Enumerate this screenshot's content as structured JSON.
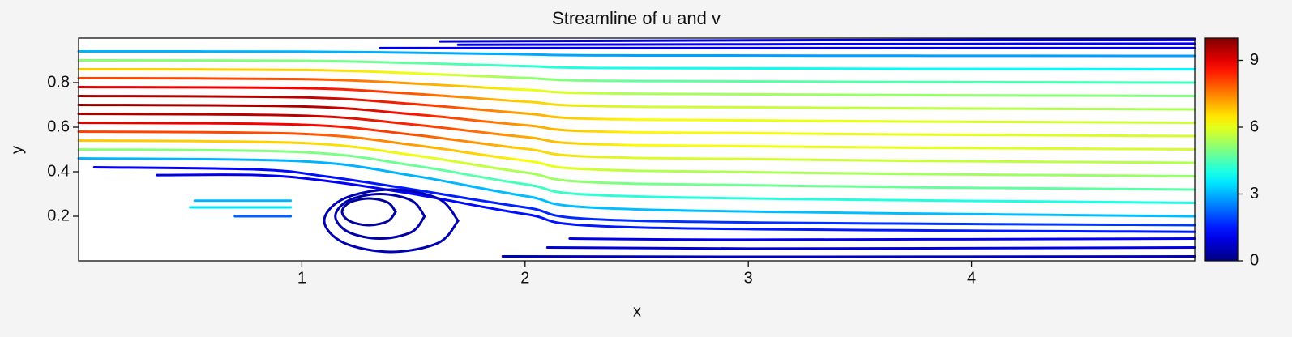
{
  "chart_data": {
    "type": "streamline",
    "title": "Streamline of u and v",
    "x_label": "x",
    "y_label": "y",
    "xlim": [
      0,
      5
    ],
    "ylim": [
      0,
      1
    ],
    "xticks": [
      1,
      2,
      3,
      4
    ],
    "yticks": [
      0.2,
      0.4,
      0.6,
      0.8
    ],
    "colormap": "jet",
    "clim": [
      0,
      10
    ],
    "cticks": [
      0,
      3,
      6,
      9
    ],
    "streamlines": [
      {
        "x": [
          0,
          1,
          1.5,
          2,
          2.5,
          5
        ],
        "y": [
          0.46,
          0.447,
          0.382,
          0.291,
          0.231,
          0.2
        ],
        "speed": [
          3.0,
          3.0,
          3.0,
          3.1,
          3.1,
          3.1
        ]
      },
      {
        "x": [
          0,
          1,
          1.5,
          2,
          2.5,
          5
        ],
        "y": [
          0.5,
          0.488,
          0.428,
          0.344,
          0.289,
          0.26
        ],
        "speed": [
          5.1,
          5.0,
          4.8,
          4.4,
          4.1,
          4.0
        ]
      },
      {
        "x": [
          0,
          1,
          1.5,
          2,
          2.5,
          5
        ],
        "y": [
          0.54,
          0.529,
          0.474,
          0.397,
          0.346,
          0.32
        ],
        "speed": [
          6.8,
          6.7,
          6.1,
          5.4,
          4.9,
          4.6
        ]
      },
      {
        "x": [
          0,
          1,
          1.5,
          2,
          2.5,
          5
        ],
        "y": [
          0.58,
          0.57,
          0.52,
          0.45,
          0.404,
          0.38
        ],
        "speed": [
          8.1,
          8.0,
          7.2,
          6.2,
          5.5,
          5.2
        ]
      },
      {
        "x": [
          0,
          1,
          1.5,
          2,
          2.5,
          5
        ],
        "y": [
          0.62,
          0.611,
          0.566,
          0.503,
          0.462,
          0.44
        ],
        "speed": [
          9.0,
          8.8,
          8.0,
          6.7,
          5.9,
          5.5
        ]
      },
      {
        "x": [
          0,
          1,
          1.5,
          2,
          2.5,
          5
        ],
        "y": [
          0.66,
          0.652,
          0.612,
          0.556,
          0.519,
          0.5
        ],
        "speed": [
          9.6,
          9.4,
          8.4,
          7.1,
          6.2,
          5.8
        ]
      },
      {
        "x": [
          0,
          1,
          1.5,
          2,
          2.5,
          5
        ],
        "y": [
          0.7,
          0.693,
          0.658,
          0.609,
          0.577,
          0.56
        ],
        "speed": [
          9.8,
          9.6,
          8.6,
          7.2,
          6.3,
          5.8
        ]
      },
      {
        "x": [
          0,
          1,
          1.5,
          2,
          2.5,
          5
        ],
        "y": [
          0.74,
          0.734,
          0.704,
          0.662,
          0.634,
          0.62
        ],
        "speed": [
          9.6,
          9.4,
          8.4,
          7.1,
          6.2,
          5.7
        ]
      },
      {
        "x": [
          0,
          1,
          1.5,
          2,
          2.5,
          5
        ],
        "y": [
          0.78,
          0.775,
          0.75,
          0.715,
          0.692,
          0.68
        ],
        "speed": [
          9.0,
          8.8,
          7.9,
          6.7,
          5.8,
          5.4
        ]
      },
      {
        "x": [
          0,
          1,
          1.5,
          2,
          2.5,
          5
        ],
        "y": [
          0.82,
          0.816,
          0.796,
          0.768,
          0.75,
          0.74
        ],
        "speed": [
          8.1,
          8.0,
          7.2,
          6.1,
          5.4,
          5.0
        ]
      },
      {
        "x": [
          0,
          1,
          1.5,
          2,
          2.5,
          5
        ],
        "y": [
          0.86,
          0.857,
          0.842,
          0.821,
          0.807,
          0.8
        ],
        "speed": [
          6.8,
          6.7,
          6.1,
          5.2,
          4.7,
          4.4
        ]
      },
      {
        "x": [
          0,
          1,
          1.5,
          2,
          2.5,
          5
        ],
        "y": [
          0.9,
          0.898,
          0.888,
          0.874,
          0.865,
          0.86
        ],
        "speed": [
          5.1,
          5.0,
          4.7,
          4.2,
          3.9,
          3.7
        ]
      },
      {
        "x": [
          0,
          1,
          1.5,
          2,
          2.5,
          5
        ],
        "y": [
          0.94,
          0.939,
          0.934,
          0.927,
          0.922,
          0.92
        ],
        "speed": [
          3.0,
          3.0,
          2.9,
          2.9,
          2.8,
          2.8
        ]
      },
      {
        "x": [
          1.35,
          3,
          5
        ],
        "y": [
          0.955,
          0.955,
          0.955
        ],
        "speed": [
          1.0,
          1.0,
          1.0
        ]
      },
      {
        "x": [
          1.62,
          3,
          5
        ],
        "y": [
          0.985,
          0.99,
          0.995
        ],
        "speed": [
          0.8,
          0.8,
          0.8
        ]
      },
      {
        "x": [
          1.7,
          3,
          5
        ],
        "y": [
          0.97,
          0.972,
          0.975
        ],
        "speed": [
          1.2,
          1.2,
          1.2
        ]
      },
      {
        "x": [
          0.07,
          0.8,
          1.1,
          1.5,
          2,
          2.5,
          5
        ],
        "y": [
          0.42,
          0.41,
          0.38,
          0.32,
          0.24,
          0.18,
          0.16
        ],
        "speed": [
          1.2,
          1.3,
          1.4,
          1.5,
          1.6,
          1.7,
          1.8
        ]
      },
      {
        "x": [
          0.35,
          0.8,
          1.1,
          1.5,
          2,
          2.5,
          5
        ],
        "y": [
          0.385,
          0.385,
          0.36,
          0.3,
          0.21,
          0.15,
          0.13
        ],
        "speed": [
          1.0,
          1.1,
          1.2,
          1.3,
          1.4,
          1.5,
          1.5
        ]
      },
      {
        "x": [
          0.5,
          0.95
        ],
        "y": [
          0.24,
          0.24
        ],
        "speed": [
          3.5,
          3.5
        ]
      },
      {
        "x": [
          0.52,
          0.95
        ],
        "y": [
          0.27,
          0.27
        ],
        "speed": [
          3.0,
          3.0
        ]
      },
      {
        "x": [
          0.7,
          0.95
        ],
        "y": [
          0.2,
          0.2
        ],
        "speed": [
          2.2,
          2.2
        ]
      },
      {
        "x": [
          2.2,
          3,
          5
        ],
        "y": [
          0.1,
          0.095,
          0.1
        ],
        "speed": [
          1.0,
          1.1,
          1.2
        ]
      },
      {
        "x": [
          2.1,
          3,
          5
        ],
        "y": [
          0.06,
          0.055,
          0.06
        ],
        "speed": [
          0.8,
          0.9,
          1.0
        ]
      },
      {
        "x": [
          1.9,
          3,
          5
        ],
        "y": [
          0.02,
          0.018,
          0.02
        ],
        "speed": [
          0.5,
          0.6,
          0.6
        ]
      },
      {
        "x": [
          1.42,
          1.385,
          1.3,
          1.215,
          1.18,
          1.215,
          1.3,
          1.385,
          1.42
        ],
        "y": [
          0.22,
          0.262,
          0.28,
          0.262,
          0.22,
          0.178,
          0.16,
          0.178,
          0.22
        ],
        "speed": [
          0.3,
          0.3,
          0.3,
          0.3,
          0.3,
          0.3,
          0.3,
          0.3,
          0.3
        ]
      },
      {
        "x": [
          1.55,
          1.491,
          1.35,
          1.209,
          1.15,
          1.209,
          1.35,
          1.491,
          1.55
        ],
        "y": [
          0.2,
          0.271,
          0.3,
          0.271,
          0.2,
          0.129,
          0.1,
          0.129,
          0.2
        ],
        "speed": [
          0.4,
          0.4,
          0.4,
          0.4,
          0.4,
          0.4,
          0.4,
          0.4,
          0.4
        ]
      },
      {
        "x": [
          1.7,
          1.612,
          1.4,
          1.188,
          1.1,
          1.188,
          1.4,
          1.612,
          1.7
        ],
        "y": [
          0.18,
          0.279,
          0.32,
          0.279,
          0.18,
          0.081,
          0.04,
          0.081,
          0.18
        ],
        "speed": [
          0.5,
          0.5,
          0.5,
          0.5,
          0.5,
          0.5,
          0.5,
          0.5,
          0.5
        ]
      }
    ]
  }
}
